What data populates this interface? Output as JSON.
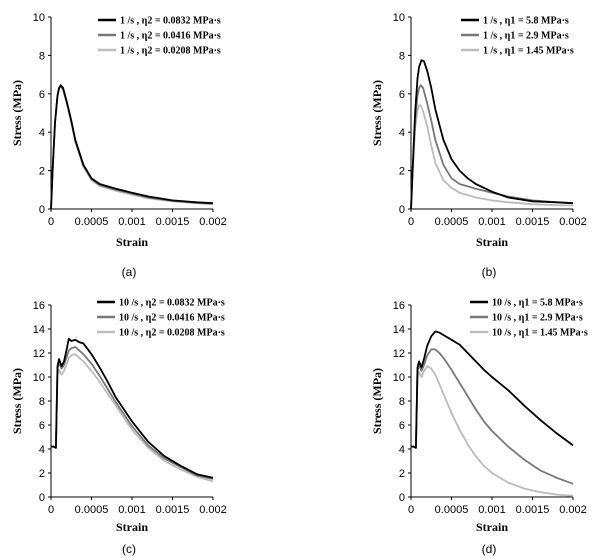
{
  "chart_data": [
    {
      "type": "line",
      "caption": "(a)",
      "xlabel": "Strain",
      "ylabel": "Stress (MPa)",
      "xlim": [
        0,
        0.002
      ],
      "ylim": [
        0,
        10
      ],
      "xticks": [
        "0",
        "0.0005",
        "0.001",
        "0.0015",
        "0.002"
      ],
      "yticks": [
        "0",
        "2",
        "4",
        "6",
        "8",
        "10"
      ],
      "grid": false,
      "legend": "top-right",
      "series": [
        {
          "name": "1 /s , η2 = 0.0832 MPa·s",
          "color": "#000000",
          "x": [
            0,
            2e-05,
            5e-05,
            8e-05,
            0.0001,
            0.00012,
            0.00015,
            0.0002,
            0.00025,
            0.0003,
            0.0004,
            0.0005,
            0.0006,
            0.0008,
            0.001,
            0.0012,
            0.0015,
            0.0018,
            0.002
          ],
          "y": [
            0,
            2.0,
            4.5,
            5.9,
            6.3,
            6.45,
            6.3,
            5.5,
            4.6,
            3.6,
            2.3,
            1.6,
            1.3,
            1.05,
            0.85,
            0.65,
            0.45,
            0.35,
            0.3
          ]
        },
        {
          "name": "1 /s , η2 = 0.0416 MPa·s",
          "color": "#777777",
          "x": [
            0,
            2e-05,
            5e-05,
            8e-05,
            0.0001,
            0.00012,
            0.00015,
            0.0002,
            0.00025,
            0.0003,
            0.0004,
            0.0005,
            0.0006,
            0.0008,
            0.001,
            0.0012,
            0.0015,
            0.0018,
            0.002
          ],
          "y": [
            0,
            2.0,
            4.5,
            5.9,
            6.3,
            6.4,
            6.25,
            5.45,
            4.55,
            3.55,
            2.25,
            1.55,
            1.25,
            1.0,
            0.8,
            0.6,
            0.42,
            0.32,
            0.28
          ]
        },
        {
          "name": "1 /s , η2 = 0.0208 MPa·s",
          "color": "#bbbbbb",
          "x": [
            0,
            2e-05,
            5e-05,
            8e-05,
            0.0001,
            0.00012,
            0.00015,
            0.0002,
            0.00025,
            0.0003,
            0.0004,
            0.0005,
            0.0006,
            0.0008,
            0.001,
            0.0012,
            0.0015,
            0.0018,
            0.002
          ],
          "y": [
            0,
            2.0,
            4.5,
            5.9,
            6.3,
            6.35,
            6.2,
            5.4,
            4.5,
            3.5,
            2.2,
            1.5,
            1.2,
            0.95,
            0.75,
            0.55,
            0.4,
            0.3,
            0.25
          ]
        }
      ]
    },
    {
      "type": "line",
      "caption": "(b)",
      "xlabel": "Strain",
      "ylabel": "Stress (MPa)",
      "xlim": [
        0,
        0.002
      ],
      "ylim": [
        0,
        10
      ],
      "xticks": [
        "0",
        "0.0005",
        "0.001",
        "0.0015",
        "0.002"
      ],
      "yticks": [
        "0",
        "2",
        "4",
        "6",
        "8",
        "10"
      ],
      "grid": false,
      "legend": "top-right",
      "series": [
        {
          "name": "1 /s , η1 = 5.8 MPa·s",
          "color": "#000000",
          "x": [
            0,
            2e-05,
            5e-05,
            8e-05,
            0.0001,
            0.00013,
            0.00016,
            0.0002,
            0.00025,
            0.0003,
            0.0004,
            0.0005,
            0.0006,
            0.0007,
            0.0008,
            0.001,
            0.0012,
            0.0015,
            0.0018,
            0.002
          ],
          "y": [
            0,
            2.0,
            5.0,
            6.8,
            7.4,
            7.75,
            7.7,
            7.2,
            6.3,
            5.2,
            3.6,
            2.6,
            2.0,
            1.6,
            1.3,
            0.9,
            0.6,
            0.4,
            0.35,
            0.3
          ]
        },
        {
          "name": "1 /s , η1 = 2.9 MPa·s",
          "color": "#777777",
          "x": [
            0,
            2e-05,
            5e-05,
            8e-05,
            0.0001,
            0.00012,
            0.00015,
            0.0002,
            0.00025,
            0.0003,
            0.0004,
            0.0005,
            0.0006,
            0.0008,
            0.001,
            0.0012,
            0.0015,
            0.0018,
            0.002
          ],
          "y": [
            0,
            2.0,
            4.5,
            5.9,
            6.3,
            6.45,
            6.3,
            5.5,
            4.6,
            3.6,
            2.3,
            1.6,
            1.3,
            1.05,
            0.85,
            0.65,
            0.45,
            0.35,
            0.3
          ]
        },
        {
          "name": "1 /s , η1 = 1.45 MPa·s",
          "color": "#bbbbbb",
          "x": [
            0,
            2e-05,
            5e-05,
            8e-05,
            0.0001,
            0.00012,
            0.00015,
            0.0002,
            0.00025,
            0.0003,
            0.0004,
            0.0005,
            0.0006,
            0.0008,
            0.001,
            0.0012,
            0.0015,
            0.0018,
            0.002
          ],
          "y": [
            0,
            2.0,
            4.2,
            5.1,
            5.4,
            5.4,
            5.1,
            4.3,
            3.3,
            2.4,
            1.5,
            1.1,
            0.85,
            0.6,
            0.45,
            0.35,
            0.25,
            0.2,
            0.18
          ]
        }
      ]
    },
    {
      "type": "line",
      "caption": "(c)",
      "xlabel": "Strain",
      "ylabel": "Stress (MPa)",
      "xlim": [
        0,
        0.002
      ],
      "ylim": [
        0,
        16
      ],
      "xticks": [
        "0",
        "0.0005",
        "0.001",
        "0.0015",
        "0.002"
      ],
      "yticks": [
        "0",
        "2",
        "4",
        "6",
        "8",
        "10",
        "12",
        "14",
        "16"
      ],
      "grid": false,
      "legend": "top-right",
      "series": [
        {
          "name": "10 /s , η2 = 0.0832 MPa·s",
          "color": "#000000",
          "x": [
            0,
            3e-05,
            6e-05,
            8e-05,
            0.0001,
            0.00013,
            0.00016,
            0.0002,
            0.00022,
            0.00025,
            0.0003,
            0.00035,
            0.0004,
            0.0005,
            0.0006,
            0.0007,
            0.0008,
            0.0009,
            0.001,
            0.0012,
            0.0014,
            0.0016,
            0.0018,
            0.002
          ],
          "y": [
            4.2,
            4.2,
            4.1,
            10.9,
            11.5,
            10.9,
            11.3,
            12.5,
            13.2,
            13.0,
            13.1,
            12.9,
            12.8,
            11.9,
            10.8,
            9.6,
            8.3,
            7.3,
            6.3,
            4.6,
            3.4,
            2.6,
            1.9,
            1.6
          ]
        },
        {
          "name": "10 /s , η2 = 0.0416 MPa·s",
          "color": "#777777",
          "x": [
            0,
            3e-05,
            6e-05,
            8e-05,
            0.0001,
            0.00013,
            0.00016,
            0.0002,
            0.00022,
            0.00025,
            0.0003,
            0.00035,
            0.0004,
            0.0005,
            0.0006,
            0.0007,
            0.0008,
            0.0009,
            0.001,
            0.0012,
            0.0014,
            0.0016,
            0.0018,
            0.002
          ],
          "y": [
            4.2,
            4.2,
            4.1,
            10.7,
            11.2,
            10.7,
            11.0,
            11.8,
            12.2,
            12.4,
            12.5,
            12.2,
            11.9,
            11.1,
            10.1,
            9.0,
            7.9,
            6.9,
            5.9,
            4.3,
            3.2,
            2.5,
            1.8,
            1.5
          ]
        },
        {
          "name": "10 /s , η2 = 0.0208 MPa·s",
          "color": "#bbbbbb",
          "x": [
            0,
            3e-05,
            6e-05,
            8e-05,
            0.0001,
            0.00013,
            0.00016,
            0.0002,
            0.00022,
            0.00025,
            0.0003,
            0.00035,
            0.0004,
            0.0005,
            0.0006,
            0.0007,
            0.0008,
            0.0009,
            0.001,
            0.0012,
            0.0014,
            0.0016,
            0.0018,
            0.002
          ],
          "y": [
            4.2,
            4.2,
            4.1,
            10.2,
            10.6,
            10.2,
            10.5,
            11.2,
            11.6,
            11.8,
            11.9,
            11.6,
            11.3,
            10.5,
            9.6,
            8.6,
            7.6,
            6.6,
            5.6,
            4.1,
            3.0,
            2.3,
            1.7,
            1.3
          ]
        }
      ]
    },
    {
      "type": "line",
      "caption": "(d)",
      "xlabel": "Strain",
      "ylabel": "Stress (MPa)",
      "xlim": [
        0,
        0.002
      ],
      "ylim": [
        0,
        16
      ],
      "xticks": [
        "0",
        "0.0005",
        "0.001",
        "0.0015",
        "0.002"
      ],
      "yticks": [
        "0",
        "2",
        "4",
        "6",
        "8",
        "10",
        "12",
        "14",
        "16"
      ],
      "grid": false,
      "legend": "top-right",
      "series": [
        {
          "name": "10 /s , η1 = 5.8 MPa·s",
          "color": "#000000",
          "x": [
            0,
            3e-05,
            6e-05,
            8e-05,
            0.0001,
            0.00013,
            0.00016,
            0.0002,
            0.00025,
            0.0003,
            0.00035,
            0.0004,
            0.0005,
            0.0006,
            0.0007,
            0.0008,
            0.0009,
            0.001,
            0.0012,
            0.0014,
            0.0016,
            0.0018,
            0.002
          ],
          "y": [
            4.2,
            4.2,
            4.1,
            10.8,
            11.3,
            10.8,
            11.5,
            12.6,
            13.4,
            13.8,
            13.7,
            13.5,
            13.1,
            12.7,
            12.0,
            11.3,
            10.6,
            10.0,
            8.9,
            7.6,
            6.4,
            5.3,
            4.3
          ]
        },
        {
          "name": "10 /s , η1 = 2.9 MPa·s",
          "color": "#777777",
          "x": [
            0,
            3e-05,
            6e-05,
            8e-05,
            0.0001,
            0.00013,
            0.00016,
            0.0002,
            0.00025,
            0.0003,
            0.00035,
            0.0004,
            0.0005,
            0.0006,
            0.0007,
            0.0008,
            0.0009,
            0.001,
            0.0012,
            0.0014,
            0.0016,
            0.0018,
            0.002
          ],
          "y": [
            4.2,
            4.2,
            4.1,
            10.5,
            11.0,
            10.5,
            11.0,
            11.8,
            12.3,
            12.3,
            12.0,
            11.6,
            10.6,
            9.5,
            8.4,
            7.3,
            6.3,
            5.5,
            4.2,
            3.1,
            2.2,
            1.6,
            1.1
          ]
        },
        {
          "name": "10 /s , η1 = 1.45 MPa·s",
          "color": "#bbbbbb",
          "x": [
            0,
            3e-05,
            6e-05,
            8e-05,
            0.0001,
            0.00013,
            0.00016,
            0.0002,
            0.00025,
            0.0003,
            0.00035,
            0.0004,
            0.0005,
            0.0006,
            0.0007,
            0.0008,
            0.0009,
            0.001,
            0.0012,
            0.0014,
            0.0016,
            0.0018,
            0.002
          ],
          "y": [
            4.2,
            4.2,
            4.1,
            10.0,
            10.4,
            10.0,
            10.5,
            10.9,
            10.7,
            10.2,
            9.4,
            8.6,
            7.0,
            5.6,
            4.4,
            3.4,
            2.6,
            2.0,
            1.2,
            0.7,
            0.4,
            0.2,
            0.1
          ]
        }
      ]
    }
  ]
}
